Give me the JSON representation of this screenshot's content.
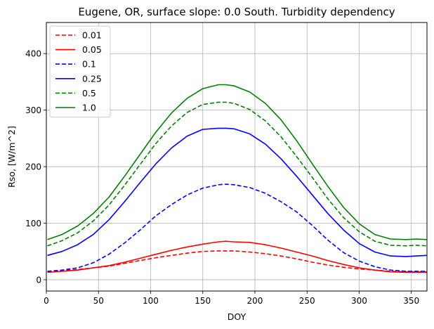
{
  "chart_data": {
    "type": "line",
    "title": "Eugene, OR, surface slope: 0.0 South. Turbidity dependency",
    "xlabel": "DOY",
    "ylabel": "Rso, [W/m^2]",
    "xlim": [
      0,
      365
    ],
    "ylim": [
      -20,
      455
    ],
    "xticks": [
      0,
      50,
      100,
      150,
      200,
      250,
      300,
      350
    ],
    "yticks": [
      0,
      100,
      200,
      300,
      400
    ],
    "grid": true,
    "legend_position": "top-left",
    "x": [
      1,
      15,
      30,
      45,
      60,
      75,
      90,
      105,
      120,
      135,
      150,
      165,
      172,
      180,
      195,
      210,
      225,
      240,
      255,
      270,
      285,
      300,
      315,
      330,
      345,
      355,
      365
    ],
    "series": [
      {
        "name": "0.01",
        "color": "#ff0000",
        "dash": "dashed",
        "values": [
          14,
          16,
          18,
          21,
          24,
          29,
          34,
          39,
          43,
          47,
          50,
          51,
          51,
          51,
          49,
          46,
          42,
          37,
          31,
          26,
          22,
          19,
          17,
          15,
          14,
          14,
          14
        ]
      },
      {
        "name": "0.05",
        "color": "#ff0000",
        "dash": "solid",
        "values": [
          13,
          15,
          17,
          21,
          25,
          31,
          38,
          45,
          52,
          58,
          63,
          67,
          68,
          67,
          66,
          62,
          56,
          49,
          42,
          34,
          27,
          21,
          17,
          14,
          13,
          13,
          13
        ]
      },
      {
        "name": "0.1",
        "color": "#0000ff",
        "dash": "dashed",
        "values": [
          15,
          17,
          21,
          30,
          45,
          65,
          88,
          113,
          133,
          150,
          162,
          168,
          169,
          168,
          163,
          153,
          138,
          120,
          96,
          70,
          48,
          33,
          23,
          17,
          15,
          15,
          15
        ]
      },
      {
        "name": "0.25",
        "color": "#0000ff",
        "dash": "solid",
        "values": [
          43,
          50,
          62,
          80,
          106,
          138,
          172,
          205,
          233,
          254,
          266,
          268,
          268,
          267,
          258,
          240,
          214,
          183,
          150,
          117,
          88,
          64,
          49,
          42,
          41,
          42,
          43
        ]
      },
      {
        "name": "0.5",
        "color": "#008000",
        "dash": "dashed",
        "values": [
          60,
          69,
          83,
          104,
          132,
          167,
          204,
          241,
          272,
          296,
          310,
          314,
          314,
          312,
          301,
          281,
          253,
          218,
          181,
          143,
          110,
          85,
          68,
          61,
          60,
          61,
          60
        ]
      },
      {
        "name": "1.0",
        "color": "#008000",
        "dash": "solid",
        "values": [
          71,
          80,
          95,
          117,
          146,
          183,
          222,
          261,
          295,
          321,
          338,
          345,
          345,
          343,
          332,
          312,
          283,
          246,
          205,
          165,
          128,
          99,
          80,
          72,
          71,
          72,
          71
        ]
      }
    ]
  }
}
